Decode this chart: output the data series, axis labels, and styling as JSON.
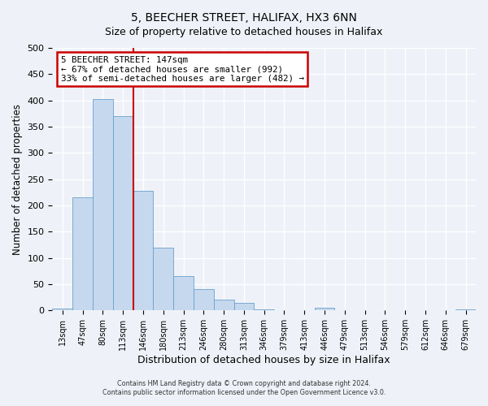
{
  "title": "5, BEECHER STREET, HALIFAX, HX3 6NN",
  "subtitle": "Size of property relative to detached houses in Halifax",
  "xlabel": "Distribution of detached houses by size in Halifax",
  "ylabel": "Number of detached properties",
  "bar_labels": [
    "13sqm",
    "47sqm",
    "80sqm",
    "113sqm",
    "146sqm",
    "180sqm",
    "213sqm",
    "246sqm",
    "280sqm",
    "313sqm",
    "346sqm",
    "379sqm",
    "413sqm",
    "446sqm",
    "479sqm",
    "513sqm",
    "546sqm",
    "579sqm",
    "612sqm",
    "646sqm",
    "679sqm"
  ],
  "bar_heights": [
    3,
    215,
    403,
    370,
    228,
    120,
    65,
    40,
    20,
    14,
    2,
    0,
    0,
    5,
    1,
    0,
    0,
    0,
    0,
    0,
    2
  ],
  "bar_color": "#c5d8ee",
  "bar_edge_color": "#6aa0cc",
  "vline_x": 4,
  "vline_color": "#cc0000",
  "annotation_title": "5 BEECHER STREET: 147sqm",
  "annotation_line1": "← 67% of detached houses are smaller (992)",
  "annotation_line2": "33% of semi-detached houses are larger (482) →",
  "annotation_box_color": "#cc0000",
  "ylim": [
    0,
    500
  ],
  "yticks": [
    0,
    50,
    100,
    150,
    200,
    250,
    300,
    350,
    400,
    450,
    500
  ],
  "footer_line1": "Contains HM Land Registry data © Crown copyright and database right 2024.",
  "footer_line2": "Contains public sector information licensed under the Open Government Licence v3.0.",
  "bg_color": "#eef2f8",
  "plot_bg_color": "#eef2f8",
  "grid_color": "white",
  "title_fontsize": 10,
  "subtitle_fontsize": 9
}
